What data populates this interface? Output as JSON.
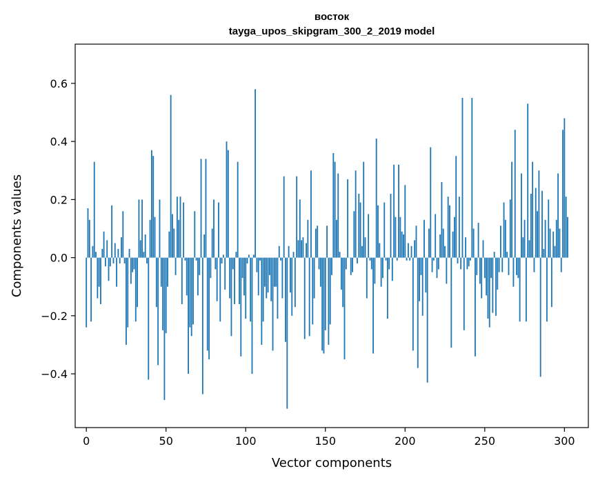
{
  "chart_data": {
    "type": "bar",
    "title": "восток",
    "subtitle": "tayga_upos_skipgram_300_2_2019 model",
    "xlabel": "Vector components",
    "ylabel": "Components values",
    "xlim": [
      -7,
      315
    ],
    "ylim": [
      -0.585,
      0.735
    ],
    "x_ticks": [
      0,
      50,
      100,
      150,
      200,
      250,
      300
    ],
    "y_ticks": [
      -0.4,
      -0.2,
      0.0,
      0.2,
      0.4,
      0.6
    ],
    "y_tick_labels": [
      "−0.4",
      "−0.2",
      "0.0",
      "0.2",
      "0.4",
      "0.6"
    ],
    "bar_color": "#1f77b4",
    "grid": false,
    "values": [
      -0.24,
      0.17,
      0.13,
      -0.22,
      0.04,
      0.33,
      0.02,
      -0.14,
      -0.1,
      -0.16,
      0.03,
      0.09,
      -0.03,
      0.06,
      -0.08,
      -0.03,
      0.18,
      -0.02,
      0.05,
      -0.1,
      0.03,
      -0.02,
      0.07,
      0.16,
      -0.02,
      -0.3,
      -0.24,
      0.03,
      -0.09,
      -0.05,
      -0.04,
      -0.22,
      -0.17,
      0.2,
      0.06,
      0.2,
      0.02,
      0.08,
      -0.02,
      -0.42,
      0.13,
      0.37,
      0.35,
      0.14,
      -0.17,
      -0.37,
      0.2,
      -0.1,
      -0.25,
      -0.49,
      -0.26,
      -0.1,
      0.09,
      0.56,
      0.15,
      0.1,
      -0.06,
      0.21,
      0.13,
      0.21,
      -0.16,
      0.19,
      -0.01,
      -0.13,
      -0.4,
      -0.24,
      -0.27,
      -0.23,
      0.16,
      -0.01,
      -0.13,
      -0.06,
      0.34,
      -0.47,
      0.08,
      0.34,
      -0.32,
      -0.35,
      -0.07,
      0.1,
      0.2,
      -0.04,
      -0.15,
      0.19,
      -0.22,
      -0.02,
      0.01,
      -0.11,
      0.4,
      0.37,
      -0.14,
      -0.27,
      -0.04,
      -0.16,
      0.02,
      0.33,
      -0.16,
      -0.34,
      -0.07,
      -0.13,
      -0.21,
      -0.02,
      0.01,
      -0.22,
      -0.4,
      0.01,
      0.58,
      -0.05,
      -0.13,
      -0.01,
      -0.3,
      -0.22,
      -0.1,
      -0.14,
      -0.12,
      -0.06,
      -0.15,
      -0.32,
      -0.1,
      -0.1,
      -0.21,
      0.04,
      -0.01,
      -0.14,
      0.28,
      -0.29,
      -0.52,
      0.04,
      -0.12,
      -0.2,
      0.02,
      -0.17,
      0.28,
      0.06,
      0.2,
      0.06,
      0.07,
      -0.28,
      0.05,
      0.13,
      -0.27,
      0.3,
      -0.23,
      -0.14,
      0.1,
      0.11,
      -0.04,
      -0.1,
      -0.32,
      -0.33,
      -0.25,
      0.11,
      -0.3,
      -0.23,
      -0.06,
      0.36,
      0.33,
      0.13,
      0.29,
      0.02,
      -0.11,
      -0.17,
      -0.35,
      -0.04,
      0.27,
      0.0,
      -0.06,
      -0.05,
      0.16,
      0.3,
      -0.02,
      0.22,
      0.19,
      0.04,
      0.33,
      0.07,
      -0.14,
      0.15,
      -0.01,
      -0.04,
      -0.33,
      -0.09,
      0.41,
      0.18,
      0.05,
      -0.1,
      -0.07,
      0.19,
      -0.01,
      -0.21,
      -0.04,
      0.22,
      -0.08,
      0.32,
      0.14,
      -0.01,
      0.32,
      0.14,
      0.09,
      0.08,
      0.25,
      -0.01,
      0.05,
      -0.01,
      0.04,
      -0.32,
      0.06,
      0.11,
      -0.38,
      -0.15,
      -0.06,
      -0.2,
      0.13,
      -0.12,
      -0.43,
      0.1,
      0.38,
      -0.05,
      -0.01,
      0.15,
      -0.07,
      -0.04,
      0.08,
      0.26,
      0.1,
      0.04,
      -0.09,
      0.21,
      0.18,
      -0.31,
      0.09,
      0.14,
      0.35,
      -0.02,
      0.21,
      -0.04,
      0.55,
      -0.25,
      0.07,
      -0.04,
      -0.03,
      -0.01,
      0.55,
      0.1,
      -0.34,
      -0.06,
      0.12,
      -0.09,
      -0.14,
      0.06,
      -0.07,
      -0.13,
      -0.21,
      -0.24,
      -0.07,
      -0.19,
      0.02,
      -0.2,
      -0.11,
      -0.05,
      0.11,
      -0.05,
      0.19,
      0.13,
      0.02,
      -0.06,
      0.2,
      0.33,
      -0.1,
      0.44,
      -0.06,
      -0.07,
      -0.22,
      0.29,
      0.07,
      0.13,
      -0.22,
      0.53,
      0.06,
      0.22,
      0.33,
      -0.05,
      0.24,
      0.16,
      0.3,
      -0.41,
      0.23,
      0.03,
      0.13,
      -0.22,
      0.2,
      0.1,
      -0.17,
      0.09,
      0.04,
      0.13,
      0.29,
      0.1,
      -0.05,
      0.44,
      0.48,
      0.21,
      0.14
    ]
  }
}
